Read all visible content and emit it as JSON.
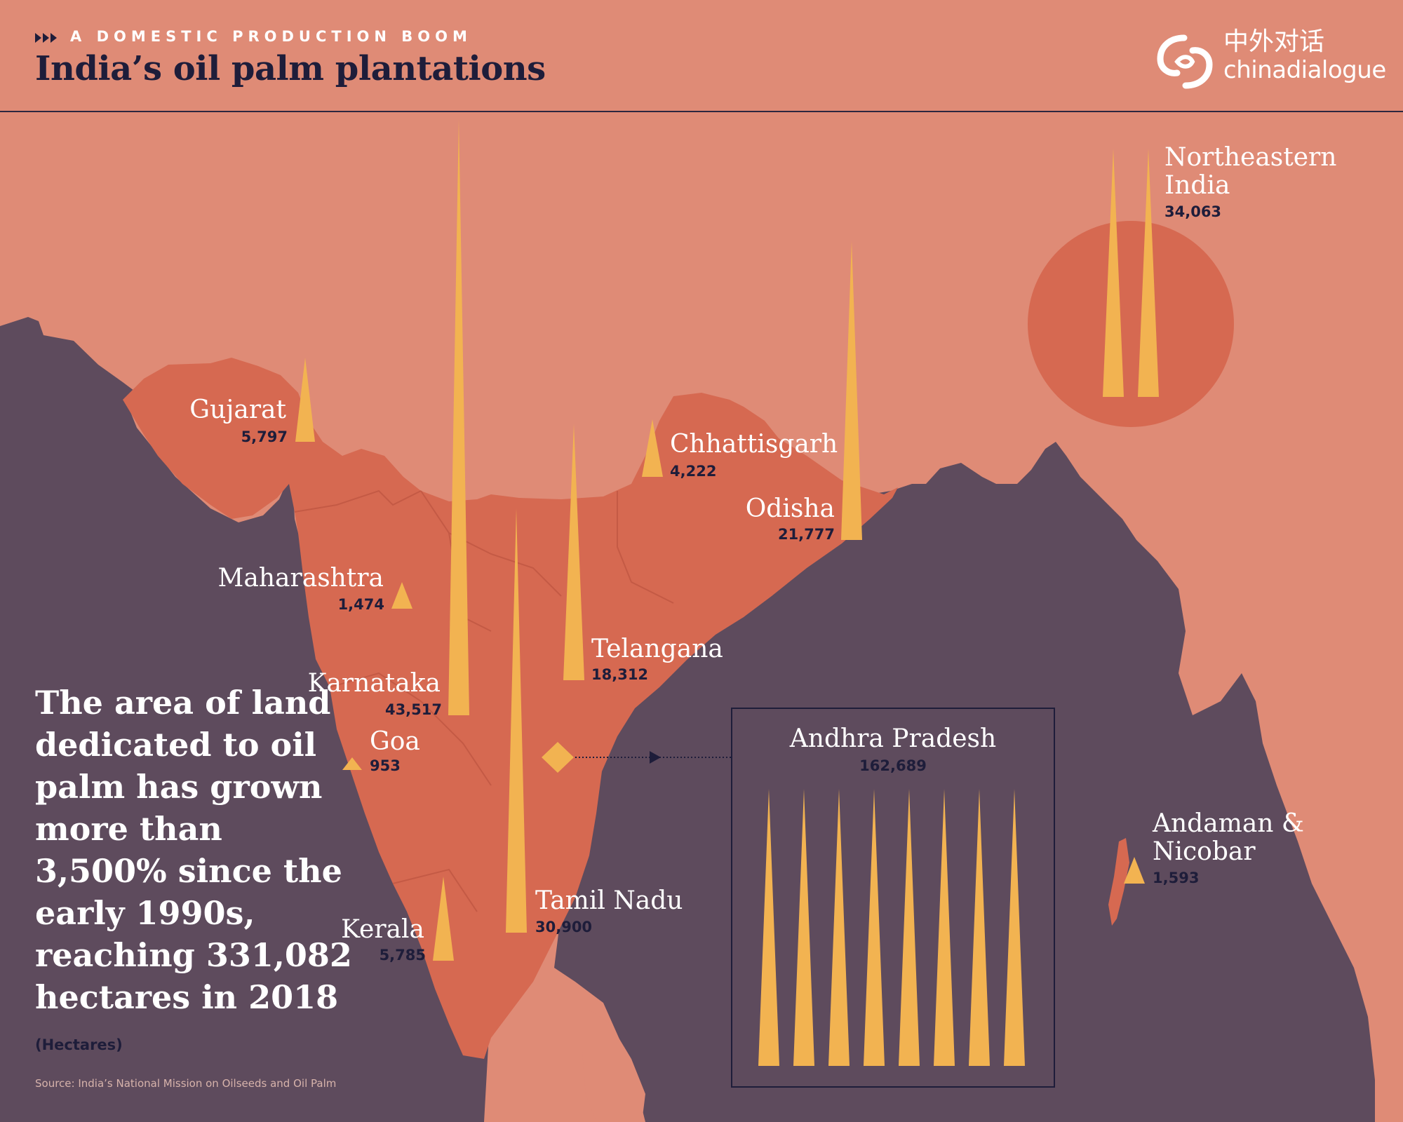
{
  "header": {
    "kicker": "A DOMESTIC PRODUCTION BOOM",
    "title": "India’s oil palm plantations",
    "logo_cn": "中外对话",
    "logo_en": "chinadialogue"
  },
  "statement": "The area of land dedicated to oil palm has grown more than 3,500% since the early 1990s, reaching 331,082 hectares in 2018",
  "unit_note": "(Hectares)",
  "source": "Source: India’s National Mission on Oilseeds and Oil Palm",
  "colors": {
    "sea": "#5e4b5d",
    "land": "#df8b76",
    "india": "#d66951",
    "marker": "#f2b351",
    "ink": "#1e1d3a"
  },
  "chart_data": {
    "type": "map",
    "unit": "Hectares",
    "total": 331082,
    "regions": [
      {
        "name": "Gujarat",
        "value_label": "5,797",
        "value": 5797
      },
      {
        "name": "Chhattisgarh",
        "value_label": "4,222",
        "value": 4222
      },
      {
        "name": "Odisha",
        "value_label": "21,777",
        "value": 21777
      },
      {
        "name": "Maharashtra",
        "value_label": "1,474",
        "value": 1474
      },
      {
        "name": "Telangana",
        "value_label": "18,312",
        "value": 18312
      },
      {
        "name": "Karnataka",
        "value_label": "43,517",
        "value": 43517
      },
      {
        "name": "Goa",
        "value_label": "953",
        "value": 953
      },
      {
        "name": "Tamil Nadu",
        "value_label": "30,900",
        "value": 30900
      },
      {
        "name": "Kerala",
        "value_label": "5,785",
        "value": 5785
      },
      {
        "name": "Northeastern India",
        "value_label": "34,063",
        "value": 34063
      },
      {
        "name": "Andaman & Nicobar",
        "value_label": "1,593",
        "value": 1593
      },
      {
        "name": "Andhra Pradesh",
        "value_label": "162,689",
        "value": 162689
      }
    ]
  }
}
